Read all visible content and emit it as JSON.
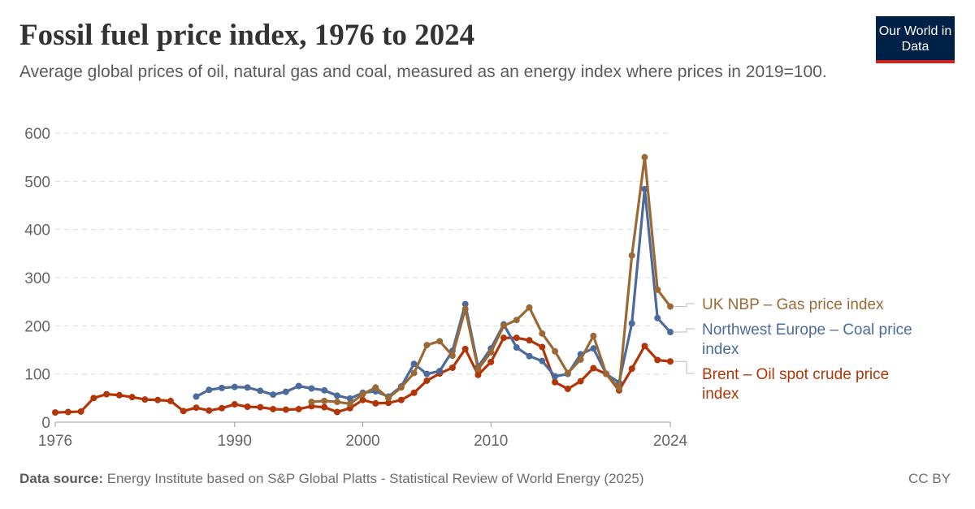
{
  "title": "Fossil fuel price index, 1976 to 2024",
  "subtitle": "Average global prices of oil, natural gas and coal, measured as an energy index where prices in 2019=100.",
  "logo": "Our World in Data",
  "source_label": "Data source:",
  "source": "Energy Institute based on S&P Global Platts - Statistical Review of World Energy (2025)",
  "license": "CC BY",
  "chart_data": {
    "type": "line",
    "xlim": [
      1976,
      2024
    ],
    "ylim": [
      0,
      600
    ],
    "yticks": [
      0,
      100,
      200,
      300,
      400,
      500,
      600
    ],
    "xticks": [
      1976,
      1990,
      2000,
      2010,
      2024
    ],
    "grid": "horizontal dashed",
    "legend": "right, inline labels",
    "series": [
      {
        "name": "UK NBP – Gas price index",
        "color": "#9a6a36",
        "start": 1996,
        "values": [
          42,
          44,
          42,
          38,
          58,
          72,
          50,
          72,
          102,
          160,
          168,
          138,
          235,
          110,
          145,
          200,
          212,
          238,
          184,
          147,
          102,
          130,
          179,
          100,
          70,
          346,
          550,
          275,
          240
        ]
      },
      {
        "name": "Northwest Europe – Coal price index",
        "color": "#4c6a9c",
        "start": 1987,
        "values": [
          53,
          67,
          71,
          73,
          72,
          65,
          57,
          63,
          75,
          70,
          66,
          55,
          49,
          61,
          64,
          53,
          74,
          121,
          100,
          106,
          148,
          245,
          115,
          153,
          203,
          155,
          137,
          127,
          95,
          100,
          141,
          153,
          100,
          82,
          205,
          484,
          216,
          187
        ]
      },
      {
        "name": "Brent – Oil spot crude price index",
        "color": "#b13507",
        "start": 1976,
        "values": [
          20,
          21,
          22,
          50,
          58,
          56,
          52,
          47,
          46,
          44,
          23,
          30,
          24,
          29,
          37,
          32,
          31,
          27,
          26,
          27,
          33,
          31,
          21,
          29,
          46,
          39,
          40,
          46,
          61,
          86,
          101,
          113,
          152,
          98,
          125,
          175,
          175,
          170,
          156,
          83,
          69,
          85,
          112,
          100,
          66,
          111,
          158,
          129,
          126
        ]
      }
    ]
  }
}
